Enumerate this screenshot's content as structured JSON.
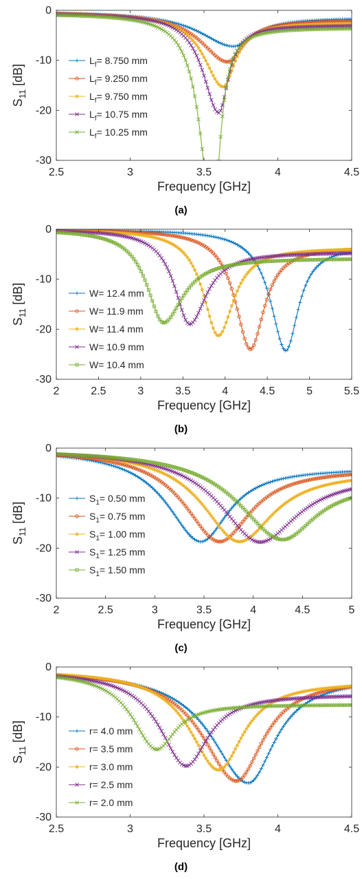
{
  "figure": {
    "captions": [
      "(a)",
      "(b)",
      "(c)",
      "(d)"
    ]
  },
  "chart_data": [
    {
      "type": "line",
      "caption": "(a)",
      "xlabel": "Frequency [GHz]",
      "ylabel": "S11 [dB]",
      "ylabel_main": "S",
      "ylabel_sub": "11",
      "ylabel_suffix": " [dB]",
      "xlim": [
        2.5,
        4.5
      ],
      "ylim": [
        -30,
        0
      ],
      "xticks": [
        2.5,
        3,
        3.5,
        4,
        4.5
      ],
      "xtick_labels": [
        "2.5",
        "3",
        "3.5",
        "4",
        "4.5"
      ],
      "yticks": [
        0,
        -10,
        -20,
        -30
      ],
      "ytick_labels": [
        "0",
        "-10",
        "-20",
        "-30"
      ],
      "grid": false,
      "legend_position": "center-left",
      "series": [
        {
          "name": "Lf= 8.750 mm",
          "label_main": "L",
          "label_sub": "f",
          "label_rest": "= 8.750 mm",
          "color": "#0072BD",
          "marker": "plus",
          "min_x": 3.7,
          "min_y": -7.2,
          "start_y": -0.2,
          "end_y": -1.5,
          "w_left": 0.28,
          "w_right": 0.17
        },
        {
          "name": "Lf= 9.250 mm",
          "label_main": "L",
          "label_sub": "f",
          "label_rest": "= 9.250 mm",
          "color": "#D95319",
          "marker": "circle",
          "min_x": 3.66,
          "min_y": -10.3,
          "start_y": -0.3,
          "end_y": -2.0,
          "w_left": 0.22,
          "w_right": 0.13
        },
        {
          "name": "Lf= 9.750 mm",
          "label_main": "L",
          "label_sub": "f",
          "label_rest": "= 9.750 mm",
          "color": "#EDB120",
          "marker": "star",
          "min_x": 3.63,
          "min_y": -15.3,
          "start_y": -0.4,
          "end_y": -2.5,
          "w_left": 0.16,
          "w_right": 0.1
        },
        {
          "name": "Lf= 10.75 mm",
          "label_main": "L",
          "label_sub": "f",
          "label_rest": "= 10.75 mm",
          "color": "#7E2F8E",
          "marker": "x",
          "min_x": 3.6,
          "min_y": -20.5,
          "start_y": -0.5,
          "end_y": -3.0,
          "w_left": 0.13,
          "w_right": 0.08
        },
        {
          "name": "Lf= 10.25 mm",
          "label_main": "L",
          "label_sub": "f",
          "label_rest": "= 10.25 mm",
          "color": "#77AC30",
          "marker": "x",
          "min_x": 3.56,
          "min_y": -42.0,
          "start_y": -0.6,
          "end_y": -3.5,
          "w_left": 0.1,
          "w_right": 0.06
        }
      ]
    },
    {
      "type": "line",
      "caption": "(b)",
      "xlabel": "Frequency [GHz]",
      "ylabel": "S11 [dB]",
      "ylabel_main": "S",
      "ylabel_sub": "11",
      "ylabel_suffix": " [dB]",
      "xlim": [
        2,
        5.5
      ],
      "ylim": [
        -30,
        0
      ],
      "xticks": [
        2,
        2.5,
        3,
        3.5,
        4,
        4.5,
        5,
        5.5
      ],
      "xtick_labels": [
        "2",
        "2.5",
        "3",
        "3.5",
        "4",
        "4.5",
        "5",
        "5.5"
      ],
      "yticks": [
        0,
        -10,
        -20,
        -30
      ],
      "ytick_labels": [
        "0",
        "-10",
        "-20",
        "-30"
      ],
      "grid": false,
      "legend_position": "bottom-left",
      "series": [
        {
          "name": "W= 12.4 mm",
          "label_main": "W",
          "label_sub": "",
          "label_rest": "= 12.4 mm",
          "color": "#0072BD",
          "marker": "plus",
          "min_x": 4.72,
          "min_y": -24.3,
          "start_y": 0.0,
          "end_y": -3.5,
          "w_left": 0.22,
          "w_right": 0.18
        },
        {
          "name": "W= 11.9 mm",
          "label_main": "W",
          "label_sub": "",
          "label_rest": "= 11.9 mm",
          "color": "#D95319",
          "marker": "circle",
          "min_x": 4.3,
          "min_y": -24.0,
          "start_y": 0.0,
          "end_y": -3.5,
          "w_left": 0.22,
          "w_right": 0.2
        },
        {
          "name": "W= 11.4 mm",
          "label_main": "W",
          "label_sub": "",
          "label_rest": "= 11.4 mm",
          "color": "#EDB120",
          "marker": "star",
          "min_x": 3.92,
          "min_y": -21.3,
          "start_y": 0.0,
          "end_y": -3.7,
          "w_left": 0.22,
          "w_right": 0.22
        },
        {
          "name": "W= 10.9 mm",
          "label_main": "W",
          "label_sub": "",
          "label_rest": "= 10.9 mm",
          "color": "#7E2F8E",
          "marker": "x",
          "min_x": 3.58,
          "min_y": -19.0,
          "start_y": 0.0,
          "end_y": -4.6,
          "w_left": 0.22,
          "w_right": 0.24
        },
        {
          "name": "W= 10.4 mm",
          "label_main": "W",
          "label_sub": "",
          "label_rest": "= 10.4 mm",
          "color": "#77AC30",
          "marker": "square",
          "min_x": 3.27,
          "min_y": -18.7,
          "start_y": 0.0,
          "end_y": -5.8,
          "w_left": 0.24,
          "w_right": 0.28
        }
      ]
    },
    {
      "type": "line",
      "caption": "(c)",
      "xlabel": "Frequency [GHz]",
      "ylabel": "S11 [dB]",
      "ylabel_main": "S",
      "ylabel_sub": "11",
      "ylabel_suffix": " [dB]",
      "xlim": [
        2,
        5
      ],
      "ylim": [
        -30,
        0
      ],
      "xticks": [
        2,
        2.5,
        3,
        3.5,
        4,
        4.5,
        5
      ],
      "xtick_labels": [
        "2",
        "2.5",
        "3",
        "3.5",
        "4",
        "4.5",
        "5"
      ],
      "yticks": [
        0,
        -10,
        -20,
        -30
      ],
      "ytick_labels": [
        "0",
        "-10",
        "-20",
        "-30"
      ],
      "grid": false,
      "legend_position": "center-left",
      "series": [
        {
          "name": "S1= 0.50 mm",
          "label_main": "S",
          "label_sub": "1",
          "label_rest": "= 0.50 mm",
          "color": "#0072BD",
          "marker": "plus",
          "min_x": 3.47,
          "min_y": -18.7,
          "start_y": -0.2,
          "end_y": -4.0,
          "w_left": 0.42,
          "w_right": 0.34
        },
        {
          "name": "S1= 0.75 mm",
          "label_main": "S",
          "label_sub": "1",
          "label_rest": "= 0.75 mm",
          "color": "#D95319",
          "marker": "circle",
          "min_x": 3.66,
          "min_y": -18.7,
          "start_y": -0.2,
          "end_y": -4.2,
          "w_left": 0.44,
          "w_right": 0.38
        },
        {
          "name": "S1= 1.00 mm",
          "label_main": "S",
          "label_sub": "1",
          "label_rest": "= 1.00 mm",
          "color": "#EDB120",
          "marker": "star",
          "min_x": 3.86,
          "min_y": -18.7,
          "start_y": -0.2,
          "end_y": -4.8,
          "w_left": 0.46,
          "w_right": 0.42
        },
        {
          "name": "S1= 1.25 mm",
          "label_main": "S",
          "label_sub": "1",
          "label_rest": "= 1.25 mm",
          "color": "#7E2F8E",
          "marker": "x",
          "min_x": 4.07,
          "min_y": -18.8,
          "start_y": -0.2,
          "end_y": -5.6,
          "w_left": 0.5,
          "w_right": 0.46
        },
        {
          "name": "S1= 1.50 mm",
          "label_main": "S",
          "label_sub": "1",
          "label_rest": "= 1.50 mm",
          "color": "#77AC30",
          "marker": "square",
          "min_x": 4.3,
          "min_y": -18.3,
          "start_y": -0.2,
          "end_y": -7.2,
          "w_left": 0.55,
          "w_right": 0.4
        }
      ]
    },
    {
      "type": "line",
      "caption": "(d)",
      "xlabel": "Frequency [GHz]",
      "ylabel": "S11 [dB]",
      "ylabel_main": "S",
      "ylabel_sub": "11",
      "ylabel_suffix": " [dB]",
      "xlim": [
        2.5,
        4.5
      ],
      "ylim": [
        -30,
        0
      ],
      "xticks": [
        2.5,
        3,
        3.5,
        4,
        4.5
      ],
      "xtick_labels": [
        "2.5",
        "3",
        "3.5",
        "4",
        "4.5"
      ],
      "yticks": [
        0,
        -10,
        -20,
        -30
      ],
      "ytick_labels": [
        "0",
        "-10",
        "-20",
        "-30"
      ],
      "grid": false,
      "legend_position": "bottom-left",
      "series": [
        {
          "name": "r= 4.0 mm",
          "label_main": "r",
          "label_sub": "",
          "label_rest": "= 4.0 mm",
          "color": "#0072BD",
          "marker": "plus",
          "min_x": 3.8,
          "min_y": -23.2,
          "start_y": -0.5,
          "end_y": -2.2,
          "w_left": 0.3,
          "w_right": 0.22
        },
        {
          "name": "r= 3.5 mm",
          "label_main": "r",
          "label_sub": "",
          "label_rest": "= 3.5 mm",
          "color": "#D95319",
          "marker": "circle",
          "min_x": 3.72,
          "min_y": -22.8,
          "start_y": -0.5,
          "end_y": -2.4,
          "w_left": 0.28,
          "w_right": 0.22
        },
        {
          "name": "r= 3.0 mm",
          "label_main": "r",
          "label_sub": "",
          "label_rest": "= 3.0 mm",
          "color": "#EDB120",
          "marker": "star",
          "min_x": 3.6,
          "min_y": -20.6,
          "start_y": -0.6,
          "end_y": -3.0,
          "w_left": 0.24,
          "w_right": 0.2
        },
        {
          "name": "r= 2.5 mm",
          "label_main": "r",
          "label_sub": "",
          "label_rest": "= 2.5 mm",
          "color": "#7E2F8E",
          "marker": "x",
          "min_x": 3.38,
          "min_y": -19.8,
          "start_y": -0.7,
          "end_y": -5.5,
          "w_left": 0.22,
          "w_right": 0.18
        },
        {
          "name": "r= 2.0 mm",
          "label_main": "r",
          "label_sub": "",
          "label_rest": "= 2.0 mm",
          "color": "#77AC30",
          "marker": "x",
          "min_x": 3.18,
          "min_y": -16.5,
          "start_y": -0.8,
          "end_y": -7.5,
          "w_left": 0.2,
          "w_right": 0.15
        }
      ]
    }
  ]
}
